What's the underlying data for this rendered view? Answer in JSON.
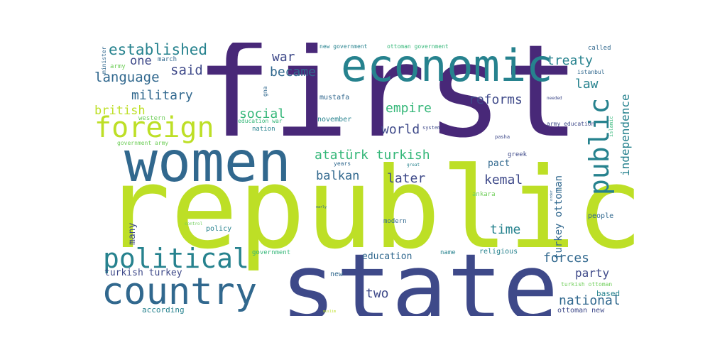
{
  "palette": {
    "lime": "#bddf26",
    "purple": "#482878",
    "indigo": "#3e4989",
    "blue": "#31688e",
    "teal": "#26828e",
    "green": "#35b779",
    "yellow": "#fde725",
    "lightgreen": "#6ece58",
    "background": "#ffffff"
  },
  "words": [
    {
      "key": "first",
      "text": "first"
    },
    {
      "key": "republic",
      "text": "republic"
    },
    {
      "key": "state",
      "text": "state"
    },
    {
      "key": "women",
      "text": "women"
    },
    {
      "key": "economic",
      "text": "economic"
    },
    {
      "key": "country",
      "text": "country"
    },
    {
      "key": "foreign",
      "text": "foreign"
    },
    {
      "key": "political",
      "text": "political"
    },
    {
      "key": "public",
      "text": "public"
    },
    {
      "key": "established",
      "text": "established"
    },
    {
      "key": "one",
      "text": "one"
    },
    {
      "key": "language",
      "text": "language"
    },
    {
      "key": "said",
      "text": "said"
    },
    {
      "key": "war",
      "text": "war"
    },
    {
      "key": "became",
      "text": "became"
    },
    {
      "key": "treaty",
      "text": "treaty"
    },
    {
      "key": "law",
      "text": "law"
    },
    {
      "key": "military",
      "text": "military"
    },
    {
      "key": "british",
      "text": "british"
    },
    {
      "key": "reforms",
      "text": "reforms"
    },
    {
      "key": "independence",
      "text": "independence"
    },
    {
      "key": "social",
      "text": "social"
    },
    {
      "key": "empire",
      "text": "empire"
    },
    {
      "key": "world",
      "text": "world"
    },
    {
      "key": "ataturk_turkish",
      "text": "atatürk turkish"
    },
    {
      "key": "balkan",
      "text": "balkan"
    },
    {
      "key": "later",
      "text": "later"
    },
    {
      "key": "kemal",
      "text": "kemal"
    },
    {
      "key": "pact",
      "text": "pact"
    },
    {
      "key": "turkey_ottoman",
      "text": "turkey ottoman"
    },
    {
      "key": "time",
      "text": "time"
    },
    {
      "key": "forces",
      "text": "forces"
    },
    {
      "key": "party",
      "text": "party"
    },
    {
      "key": "national",
      "text": "national"
    },
    {
      "key": "two",
      "text": "two"
    },
    {
      "key": "turkish_turkey",
      "text": "turkish turkey"
    },
    {
      "key": "many",
      "text": "many"
    },
    {
      "key": "education",
      "text": "education"
    },
    {
      "key": "mustafa",
      "text": "mustafa"
    },
    {
      "key": "november",
      "text": "november"
    },
    {
      "key": "new_government",
      "text": "new government"
    },
    {
      "key": "ottoman_government",
      "text": "ottoman government"
    },
    {
      "key": "called",
      "text": "called"
    },
    {
      "key": "minister",
      "text": "minister"
    },
    {
      "key": "army",
      "text": "army"
    },
    {
      "key": "march",
      "text": "march"
    },
    {
      "key": "gna",
      "text": "gna"
    },
    {
      "key": "western",
      "text": "western"
    },
    {
      "key": "education_war",
      "text": "education war"
    },
    {
      "key": "nation",
      "text": "nation"
    },
    {
      "key": "government_army",
      "text": "government army"
    },
    {
      "key": "years",
      "text": "years"
    },
    {
      "key": "great",
      "text": "great"
    },
    {
      "key": "greek",
      "text": "greek"
    },
    {
      "key": "ankara",
      "text": "ankara"
    },
    {
      "key": "army_education",
      "text": "army education"
    },
    {
      "key": "islamic",
      "text": "islamic"
    },
    {
      "key": "istanbul",
      "text": "istanbul"
    },
    {
      "key": "needed",
      "text": "needed"
    },
    {
      "key": "system",
      "text": "system"
    },
    {
      "key": "pasha",
      "text": "pasha"
    },
    {
      "key": "policy",
      "text": "policy"
    },
    {
      "key": "modern",
      "text": "modern"
    },
    {
      "key": "people",
      "text": "people"
    },
    {
      "key": "government",
      "text": "government"
    },
    {
      "key": "name",
      "text": "name"
    },
    {
      "key": "religious",
      "text": "religious"
    },
    {
      "key": "new",
      "text": "new"
    },
    {
      "key": "based",
      "text": "based"
    },
    {
      "key": "turkish_ottoman",
      "text": "turkish ottoman"
    },
    {
      "key": "according",
      "text": "according"
    },
    {
      "key": "ottoman_new",
      "text": "ottoman new"
    },
    {
      "key": "muslim",
      "text": "muslim"
    },
    {
      "key": "control",
      "text": "control"
    },
    {
      "key": "early",
      "text": "early"
    },
    {
      "key": "order",
      "text": "order"
    }
  ]
}
